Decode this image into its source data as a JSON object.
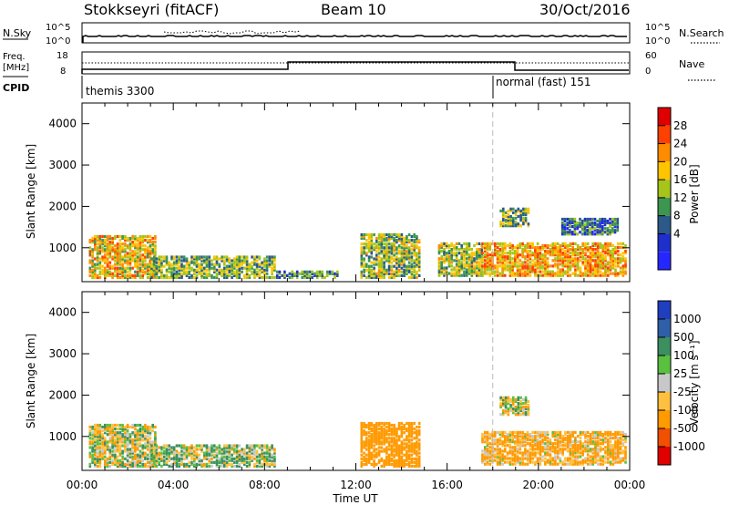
{
  "header": {
    "station": "Stokkseyri (fitACF)",
    "beam": "Beam 10",
    "date": "30/Oct/2016"
  },
  "panels": {
    "nsky": {
      "left_label": "N.Sky",
      "right_label": "N.Search",
      "left_ticks": [
        "10^5",
        "10^0"
      ],
      "right_ticks": [
        "10^5",
        "10^0"
      ]
    },
    "freq": {
      "left_label_1": "Freq.",
      "left_label_2": "[MHz]",
      "left_ticks": [
        "18",
        "8"
      ],
      "right_label": "Nave",
      "right_ticks": [
        "60",
        "0"
      ]
    },
    "cpid": {
      "label": "CPID",
      "segments": [
        {
          "name": "themis 3300",
          "start_hour": 0
        },
        {
          "name": "normal (fast) 151",
          "start_hour": 18
        }
      ]
    }
  },
  "colorbars": {
    "power": {
      "title": "Power [dB]",
      "labels": [
        "28",
        "24",
        "20",
        "16",
        "12",
        "8",
        "4"
      ],
      "colors": [
        "#e00000",
        "#ff4000",
        "#ff8c00",
        "#ffc400",
        "#a6c41a",
        "#3d9650",
        "#2b5a8a",
        "#1e2fcc",
        "#2626ff"
      ]
    },
    "velocity": {
      "title": "Velocity [m s⁻¹]",
      "labels": [
        "1000",
        "500",
        "100",
        "25",
        "-25",
        "-100",
        "-500",
        "-1000"
      ],
      "colors": [
        "#1f3fbf",
        "#2f5fa8",
        "#3c9060",
        "#5ac040",
        "#c8c8c8",
        "#ffc040",
        "#ff9a00",
        "#f05000",
        "#e00000"
      ]
    }
  },
  "chart_data": [
    {
      "type": "heatmap",
      "title": "Power",
      "ylabel": "Slant Range [km]",
      "xlabel": "Time UT",
      "x_ticks": [
        "00:00",
        "04:00",
        "08:00",
        "12:00",
        "16:00",
        "20:00",
        "00:00"
      ],
      "y_ticks": [
        "1000",
        "2000",
        "3000",
        "4000"
      ],
      "xlim_hours": [
        0,
        24
      ],
      "ylim_km": [
        180,
        4500
      ],
      "marker_line_hour": 18,
      "clusters": [
        {
          "t0": 0.3,
          "t1": 3.2,
          "r0": 250,
          "r1": 1250,
          "power_db": 20
        },
        {
          "t0": 3.0,
          "t1": 8.5,
          "r0": 250,
          "r1": 750,
          "power_db": 14
        },
        {
          "t0": 8.5,
          "t1": 11.2,
          "r0": 250,
          "r1": 400,
          "power_db": 10
        },
        {
          "t0": 12.2,
          "t1": 14.8,
          "r0": 250,
          "r1": 1300,
          "power_db": 15
        },
        {
          "t0": 15.6,
          "t1": 17.5,
          "r0": 300,
          "r1": 1100,
          "power_db": 16
        },
        {
          "t0": 17.5,
          "t1": 23.8,
          "r0": 300,
          "r1": 1100,
          "power_db": 22
        },
        {
          "t0": 18.3,
          "t1": 19.6,
          "r0": 1500,
          "r1": 1950,
          "power_db": 14
        },
        {
          "t0": 21.0,
          "t1": 23.5,
          "r0": 1300,
          "r1": 1700,
          "power_db": 8
        }
      ]
    },
    {
      "type": "heatmap",
      "title": "Velocity",
      "ylabel": "Slant Range [km]",
      "xlabel": "Time UT",
      "x_ticks": [
        "00:00",
        "04:00",
        "08:00",
        "12:00",
        "16:00",
        "20:00",
        "00:00"
      ],
      "y_ticks": [
        "1000",
        "2000",
        "3000",
        "4000"
      ],
      "xlim_hours": [
        0,
        24
      ],
      "ylim_km": [
        180,
        4500
      ],
      "marker_line_hour": 18,
      "clusters": [
        {
          "t0": 0.3,
          "t1": 3.2,
          "r0": 250,
          "r1": 1250,
          "velocity": 0
        },
        {
          "t0": 3.0,
          "t1": 8.5,
          "r0": 250,
          "r1": 750,
          "velocity": 60
        },
        {
          "t0": 12.2,
          "t1": 14.8,
          "r0": 250,
          "r1": 1300,
          "velocity": -300
        },
        {
          "t0": 17.5,
          "t1": 23.8,
          "r0": 300,
          "r1": 1100,
          "velocity": -150
        },
        {
          "t0": 18.3,
          "t1": 19.6,
          "r0": 1500,
          "r1": 1950,
          "velocity": 0
        }
      ]
    }
  ]
}
